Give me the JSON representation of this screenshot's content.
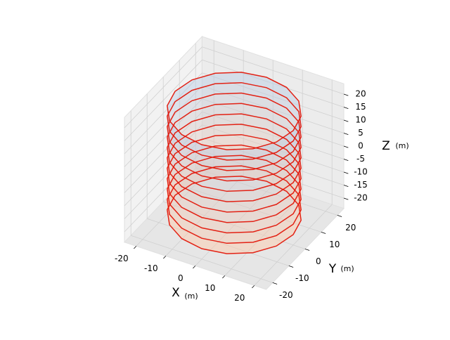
{
  "chart_data": {
    "type": "surface3d",
    "xlabel": "X",
    "ylabel": "Y",
    "zlabel": "Z",
    "xunit": "(m)",
    "yunit": "(m)",
    "zunit": "(m)",
    "xlim": [
      -24,
      24
    ],
    "ylim": [
      -24,
      24
    ],
    "zlim": [
      -24,
      24
    ],
    "xticks": [
      -20,
      -10,
      0,
      10,
      20
    ],
    "yticks": [
      -20,
      -10,
      0,
      10,
      20
    ],
    "zticks": [
      -20,
      -15,
      -10,
      -5,
      0,
      5,
      10,
      15,
      20
    ],
    "radius": 20,
    "segments": 16,
    "ring_z": [
      -20,
      -16,
      -12,
      -8,
      -4,
      0,
      4,
      8,
      12,
      16,
      20
    ],
    "ring_color": "#e3170a",
    "top_color": "#b9cde5",
    "bottom_color": "#ffc9a8",
    "grid": true
  }
}
